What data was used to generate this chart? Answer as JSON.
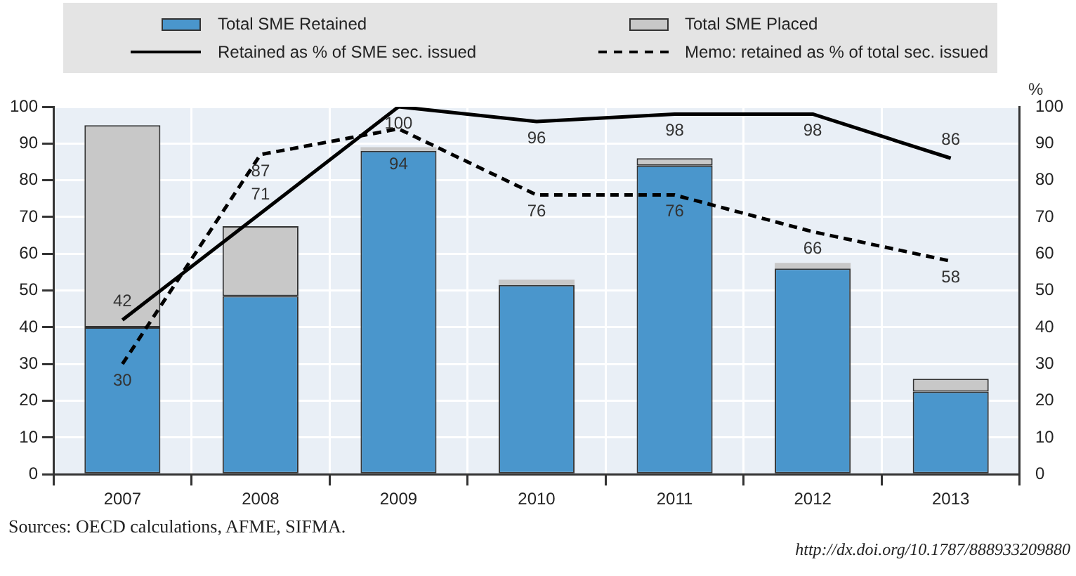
{
  "chart_data": {
    "type": "bar",
    "stacked": true,
    "categories": [
      "2007",
      "2008",
      "2009",
      "2010",
      "2011",
      "2012",
      "2013"
    ],
    "series": [
      {
        "name": "Total SME Retained",
        "color": "#4a96cc",
        "values": [
          40,
          48.5,
          88,
          51.5,
          84,
          56,
          22.5
        ]
      },
      {
        "name": "Total SME Placed",
        "color": "#c8c8c8",
        "values": [
          55,
          19,
          1,
          1.5,
          2,
          1.5,
          3.5
        ]
      },
      {
        "name": "Retained as % of SME sec. issued",
        "type": "line",
        "axis": "y2",
        "color": "#000000",
        "line_style": "solid",
        "values": [
          42,
          71,
          100,
          96,
          98,
          98,
          86
        ],
        "value_labels": [
          "42",
          "71",
          "100",
          "96",
          "98",
          "98",
          "86"
        ]
      },
      {
        "name": "Memo: retained as % of total sec. issued",
        "type": "line",
        "axis": "y2",
        "color": "#000000",
        "line_style": "dashed",
        "values": [
          30,
          87,
          94,
          76,
          76,
          66,
          58
        ],
        "value_labels": [
          "30",
          "87",
          "94",
          "76",
          "76",
          "66",
          "58"
        ]
      }
    ],
    "ylim": [
      0,
      100
    ],
    "yticks": [
      0,
      10,
      20,
      30,
      40,
      50,
      60,
      70,
      80,
      90,
      100
    ],
    "y2lim": [
      0,
      100
    ],
    "y2ticks": [
      0,
      10,
      20,
      30,
      40,
      50,
      60,
      70,
      80,
      90,
      100
    ],
    "y2label": "%",
    "grid": true,
    "legend": "top",
    "marker": "none",
    "annotations": [
      "Sources: OECD calculations, AFME, SIFMA.",
      "http://dx.doi.org/10.1787/888933209880"
    ]
  }
}
